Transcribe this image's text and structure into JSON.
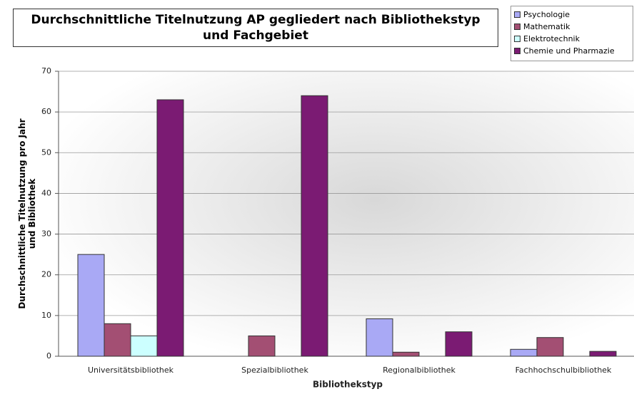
{
  "chart_data": {
    "type": "bar",
    "title": "Durchschnittliche Titelnutzung AP gegliedert nach Bibliothekstyp und Fachgebiet",
    "x_label": "Bibliothekstyp",
    "y_label": "Durchschnittliche Titelnutzung pro Jahr und Bibliothek",
    "categories": [
      "Universitätsbibliothek",
      "Spezialbibliothek",
      "Regionalbibliothek",
      "Fachhochschulbibliothek"
    ],
    "series": [
      {
        "name": "Psychologie",
        "color": "#a9a9f5",
        "values": [
          25,
          0,
          9.2,
          1.7
        ]
      },
      {
        "name": "Mathematik",
        "color": "#a34f73",
        "values": [
          8,
          5,
          1,
          4.6
        ]
      },
      {
        "name": "Elektrotechnik",
        "color": "#ccffff",
        "values": [
          5,
          0,
          0,
          0
        ]
      },
      {
        "name": "Chemie und Pharmazie",
        "color": "#7b1b73",
        "values": [
          63,
          64,
          6,
          1.2
        ]
      }
    ],
    "ylim": [
      0,
      70
    ],
    "yticks": [
      0,
      10,
      20,
      30,
      40,
      50,
      60,
      70
    ],
    "grid": true
  }
}
